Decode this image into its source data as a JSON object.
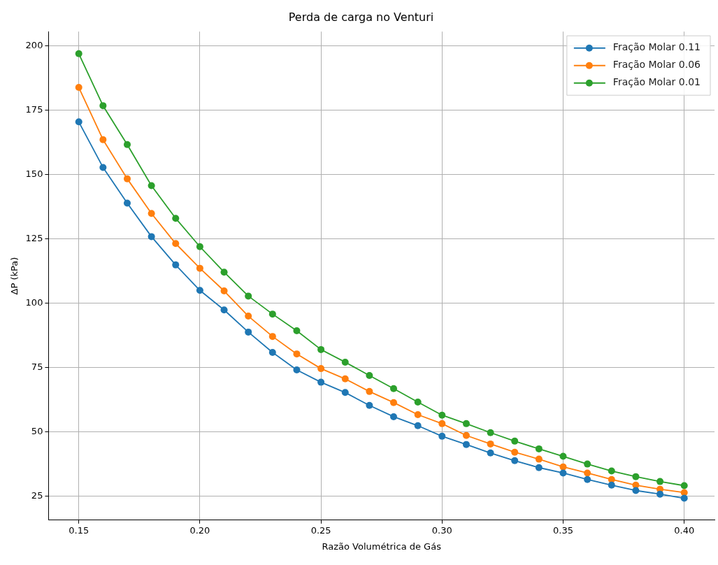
{
  "chart_data": {
    "type": "line",
    "title": "Perda de carga no Venturi",
    "xlabel": "Razão Volumétrica de Gás",
    "ylabel": "ΔP (kPa)",
    "x": [
      0.15,
      0.16,
      0.17,
      0.18,
      0.19,
      0.2,
      0.21,
      0.22,
      0.23,
      0.24,
      0.25,
      0.26,
      0.27,
      0.28,
      0.29,
      0.3,
      0.31,
      0.32,
      0.33,
      0.34,
      0.35,
      0.36,
      0.37,
      0.38,
      0.39,
      0.4
    ],
    "series": [
      {
        "name": "Fração Molar 0.11",
        "color": "#1f77b4",
        "values": [
          170.5,
          152.8,
          138.9,
          125.9,
          114.9,
          105.0,
          97.4,
          88.8,
          80.9,
          74.1,
          69.3,
          65.3,
          60.3,
          55.9,
          52.4,
          48.3,
          45.1,
          41.8,
          38.8,
          36.1,
          34.0,
          31.5,
          29.3,
          27.2,
          25.8,
          24.2
        ]
      },
      {
        "name": "Fração Molar 0.06",
        "color": "#ff7f0e",
        "values": [
          183.9,
          163.6,
          148.4,
          134.9,
          123.2,
          113.6,
          104.8,
          95.0,
          87.1,
          80.3,
          74.6,
          70.6,
          65.7,
          61.4,
          56.7,
          53.2,
          48.6,
          45.3,
          42.1,
          39.4,
          36.4,
          34.0,
          31.5,
          29.3,
          27.7,
          26.4
        ]
      },
      {
        "name": "Fração Molar 0.01",
        "color": "#2ca02c",
        "values": [
          197.0,
          176.8,
          161.7,
          145.7,
          133.0,
          122.0,
          112.1,
          102.8,
          95.8,
          89.3,
          82.0,
          77.1,
          71.9,
          66.8,
          61.6,
          56.5,
          53.2,
          49.7,
          46.4,
          43.4,
          40.5,
          37.5,
          34.8,
          32.6,
          30.7,
          29.1
        ]
      }
    ],
    "xlim": [
      0.1375,
      0.4125
    ],
    "xticks": [
      {
        "value": 0.15,
        "label": "0.15"
      },
      {
        "value": 0.2,
        "label": "0.20"
      },
      {
        "value": 0.25,
        "label": "0.25"
      },
      {
        "value": 0.3,
        "label": "0.30"
      },
      {
        "value": 0.35,
        "label": "0.35"
      },
      {
        "value": 0.4,
        "label": "0.40"
      }
    ],
    "ylim": [
      15.7,
      205.6
    ],
    "yticks": [
      25,
      50,
      75,
      100,
      125,
      150,
      175,
      200
    ],
    "grid": true,
    "legend": "top right",
    "marker": "circle",
    "line_style": "solid"
  }
}
